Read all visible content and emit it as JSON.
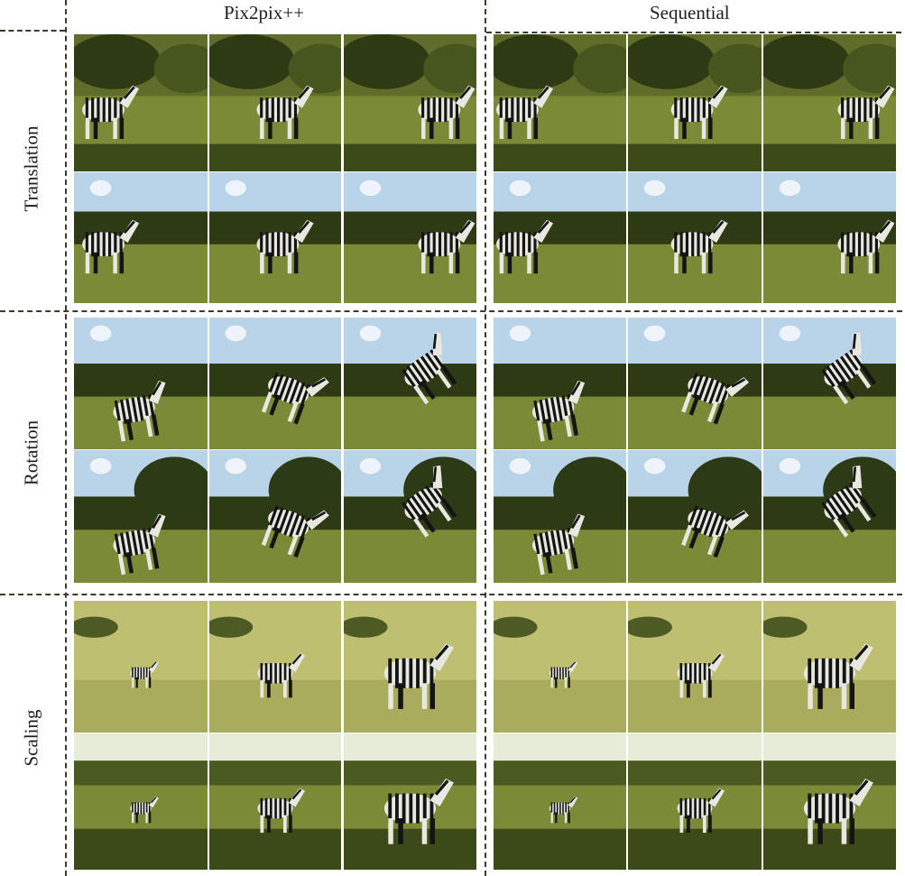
{
  "columns": [
    {
      "label": "Pix2pix++"
    },
    {
      "label": "Sequential"
    }
  ],
  "rows": [
    {
      "label": "Translation"
    },
    {
      "label": "Rotation"
    },
    {
      "label": "Scaling"
    }
  ],
  "colors": {
    "grass": "#7b8a36",
    "grass_dark": "#3c4a18",
    "trees": "#2e3a14",
    "sky": "#b9d3e8",
    "dry_grass": "#bfbf72",
    "stripe_dark": "#141414",
    "stripe_light": "#e8e8e0",
    "divider": "#3c3c2a"
  }
}
